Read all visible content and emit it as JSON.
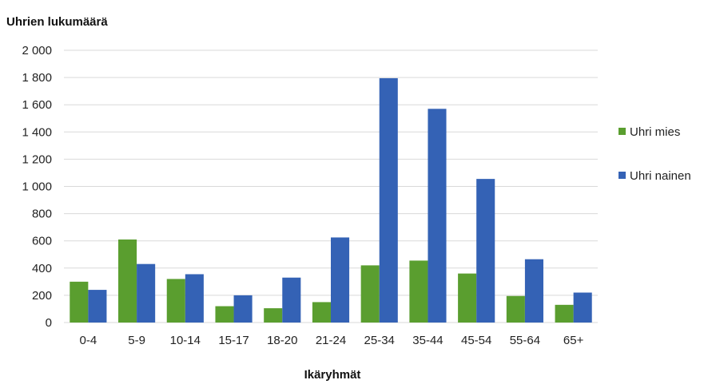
{
  "chart_data": {
    "type": "bar",
    "title": "",
    "ylabel": "Uhrien lukumäärä",
    "xlabel": "Ikäryhmät",
    "categories": [
      "0-4",
      "5-9",
      "10-14",
      "15-17",
      "18-20",
      "21-24",
      "25-34",
      "35-44",
      "45-54",
      "55-64",
      "65+"
    ],
    "series": [
      {
        "name": "Uhri mies",
        "color": "#5a9e2f",
        "values": [
          300,
          610,
          320,
          120,
          105,
          150,
          420,
          455,
          360,
          195,
          130
        ]
      },
      {
        "name": "Uhri nainen",
        "color": "#3462b5",
        "values": [
          240,
          430,
          355,
          200,
          330,
          625,
          1795,
          1570,
          1055,
          465,
          220
        ]
      }
    ],
    "ylim": [
      0,
      2000
    ],
    "yticks": [
      0,
      200,
      400,
      600,
      800,
      1000,
      1200,
      1400,
      1600,
      1800,
      2000
    ],
    "ytick_labels": [
      "0",
      "200",
      "400",
      "600",
      "800",
      "1 000",
      "1 200",
      "1 400",
      "1 600",
      "1 800",
      "2 000"
    ],
    "grid": true,
    "gridline_color": "#d9d9d9",
    "legend_position": "right"
  }
}
